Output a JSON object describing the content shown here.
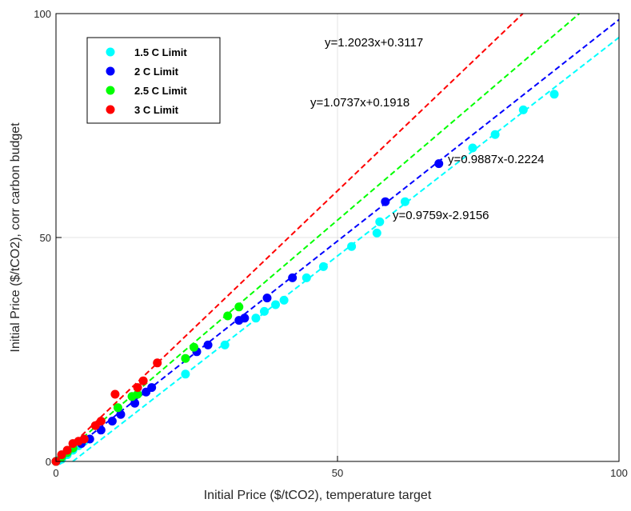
{
  "chart_data": {
    "type": "scatter",
    "title": "",
    "xlabel": "Initial Price ($/tCO2), temperature target",
    "ylabel": "Initial Price ($/tCO2), corr carbon budget",
    "xlim": [
      0,
      100
    ],
    "ylim": [
      0,
      100
    ],
    "x_ticks": [
      "0",
      "50",
      "100"
    ],
    "y_ticks": [
      "0",
      "50",
      "100"
    ],
    "grid": true,
    "legend_position": "top-left",
    "series": [
      {
        "name": "1.5 C Limit",
        "color": "#00FFFF",
        "fit": {
          "slope": 0.9759,
          "intercept": -2.9156,
          "label": "y=0.9759x-2.9156"
        },
        "points": [
          [
            0,
            0
          ],
          [
            0.5,
            0.2
          ],
          [
            1,
            0.5
          ],
          [
            2,
            1.5
          ],
          [
            3,
            2.5
          ],
          [
            4,
            3.5
          ],
          [
            5,
            4.5
          ],
          [
            23,
            19.5
          ],
          [
            30,
            26
          ],
          [
            35.5,
            32
          ],
          [
            37,
            33.5
          ],
          [
            39,
            35
          ],
          [
            40.5,
            36
          ],
          [
            44.5,
            41
          ],
          [
            47.5,
            43.5
          ],
          [
            52.5,
            48
          ],
          [
            57,
            51
          ],
          [
            57.5,
            53.5
          ],
          [
            62,
            58
          ],
          [
            74,
            70
          ],
          [
            78,
            73
          ],
          [
            83,
            78.5
          ],
          [
            88.5,
            82
          ]
        ]
      },
      {
        "name": "2 C Limit",
        "color": "#0000FF",
        "fit": {
          "slope": 0.9887,
          "intercept": -0.2224,
          "label": "y=0.9887x-0.2224"
        },
        "points": [
          [
            0,
            0
          ],
          [
            1,
            1
          ],
          [
            2,
            2
          ],
          [
            3,
            3
          ],
          [
            4.5,
            4
          ],
          [
            6,
            5
          ],
          [
            8,
            7
          ],
          [
            10,
            9
          ],
          [
            11.5,
            10.5
          ],
          [
            14,
            13
          ],
          [
            16,
            15.5
          ],
          [
            17,
            16.5
          ],
          [
            25,
            24.5
          ],
          [
            27,
            26
          ],
          [
            32.5,
            31.5
          ],
          [
            33.5,
            32
          ],
          [
            37.5,
            36.5
          ],
          [
            42,
            41
          ],
          [
            58.5,
            58
          ],
          [
            68,
            66.5
          ]
        ]
      },
      {
        "name": "2.5 C Limit",
        "color": "#00FF00",
        "fit": {
          "slope": 1.0737,
          "intercept": 0.1918,
          "label": "y=1.0737x+0.1918"
        },
        "points": [
          [
            0,
            0
          ],
          [
            1,
            1
          ],
          [
            2,
            2
          ],
          [
            3,
            3
          ],
          [
            5,
            5
          ],
          [
            11,
            12
          ],
          [
            13.5,
            14.5
          ],
          [
            14.5,
            15
          ],
          [
            23,
            23
          ],
          [
            24.5,
            25.5
          ],
          [
            30.5,
            32.5
          ],
          [
            32.5,
            34.5
          ]
        ]
      },
      {
        "name": "3 C Limit",
        "color": "#FF0000",
        "fit": {
          "slope": 1.2023,
          "intercept": 0.3117,
          "label": "y=1.2023x+0.3117"
        },
        "points": [
          [
            0,
            0
          ],
          [
            1,
            1.5
          ],
          [
            2,
            2.5
          ],
          [
            3,
            4
          ],
          [
            4,
            4.5
          ],
          [
            5,
            5
          ],
          [
            7,
            8
          ],
          [
            8,
            9
          ],
          [
            10.5,
            15
          ],
          [
            14.5,
            16.5
          ],
          [
            15.5,
            18
          ],
          [
            18,
            22
          ]
        ]
      }
    ]
  }
}
